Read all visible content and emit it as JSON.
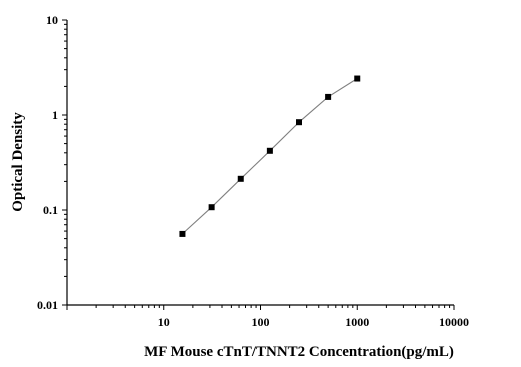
{
  "chart_data": {
    "type": "scatter",
    "title": "",
    "xlabel": "MF Mouse cTnT/TNNT2 Concentration(pg/mL)",
    "ylabel": "Optical Density",
    "x_scale": "log",
    "y_scale": "log",
    "xlim": [
      1,
      10000
    ],
    "ylim": [
      0.01,
      10
    ],
    "x_ticks": [
      10,
      100,
      1000,
      10000
    ],
    "x_tick_labels": [
      "10",
      "100",
      "1000",
      "10000"
    ],
    "y_ticks": [
      0.01,
      0.1,
      1,
      10
    ],
    "y_tick_labels": [
      "0.01",
      "0.1",
      "1",
      "10"
    ],
    "grid": false,
    "legend": "none",
    "series": [
      {
        "marker": "square",
        "color": "#000000",
        "line_color": "#808080",
        "x": [
          15.6,
          31.25,
          62.5,
          125,
          250,
          500,
          1000
        ],
        "y": [
          0.056,
          0.107,
          0.213,
          0.42,
          0.84,
          1.55,
          2.42
        ]
      }
    ]
  }
}
